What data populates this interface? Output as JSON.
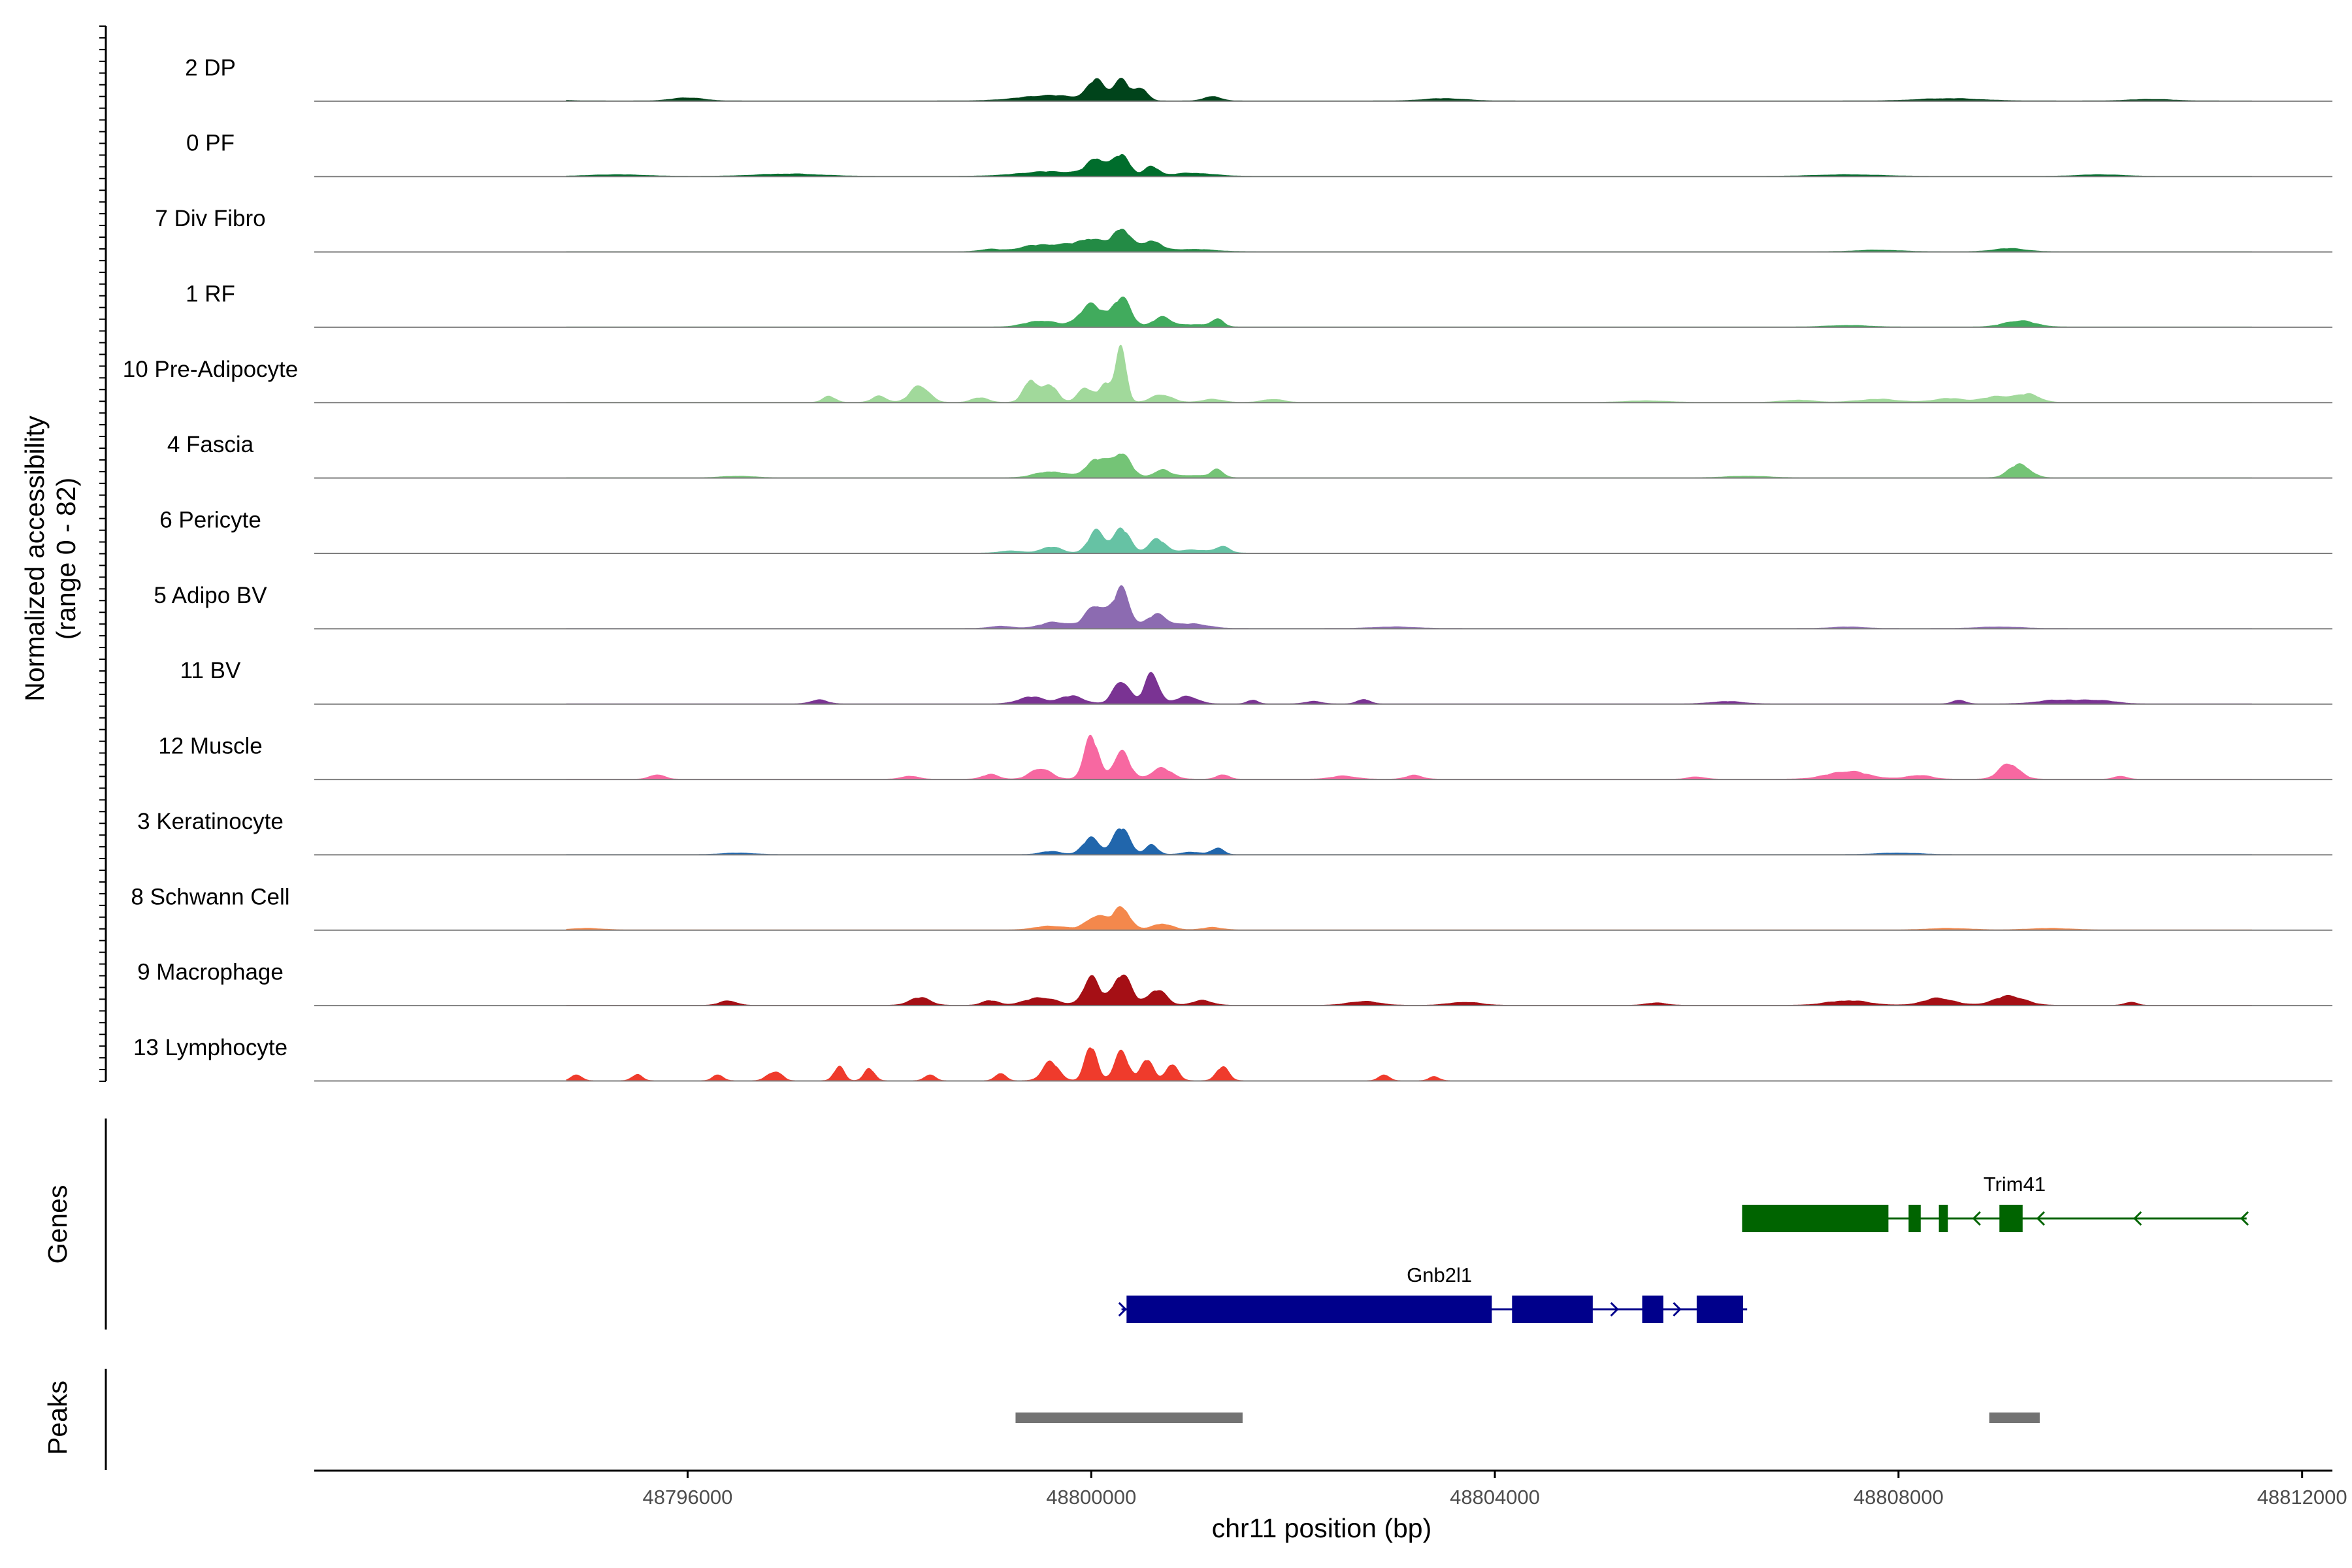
{
  "chart_data": {
    "type": "area",
    "chromosome": "chr11",
    "xlabel": "chr11 position (bp)",
    "xlim": [
      48792300,
      48812300
    ],
    "xticks": [
      48796000,
      48800000,
      48804000,
      48808000,
      48812000
    ],
    "coverage": {
      "ylabel_line1": "Normalized accessibility",
      "ylabel_line2": "(range 0 - 82)",
      "ylim": [
        0,
        82
      ],
      "tracks": [
        {
          "name": "2 DP",
          "color": "#00441B",
          "peaks": [
            [
              48800050,
              80,
              26
            ],
            [
              48800300,
              80,
              26
            ],
            [
              48800500,
              60,
              16
            ],
            [
              48799600,
              300,
              7
            ],
            [
              48801200,
              80,
              6
            ],
            [
              48796000,
              150,
              4
            ],
            [
              48803500,
              200,
              3
            ],
            [
              48808500,
              300,
              3
            ],
            [
              48810500,
              200,
              2
            ],
            [
              48794500,
              200,
              2
            ]
          ]
        },
        {
          "name": "0 PF",
          "color": "#006D2C",
          "peaks": [
            [
              48800050,
              90,
              22
            ],
            [
              48800300,
              80,
              28
            ],
            [
              48800600,
              70,
              12
            ],
            [
              48799600,
              300,
              6
            ],
            [
              48801000,
              200,
              4
            ],
            [
              48797000,
              300,
              3
            ],
            [
              48795300,
              250,
              2
            ],
            [
              48807500,
              300,
              2
            ],
            [
              48810000,
              200,
              2
            ]
          ]
        },
        {
          "name": "7 Div Fibro",
          "color": "#238B45",
          "peaks": [
            [
              48799700,
              200,
              8
            ],
            [
              48800000,
              120,
              14
            ],
            [
              48800300,
              90,
              30
            ],
            [
              48800600,
              90,
              14
            ],
            [
              48799400,
              150,
              5
            ],
            [
              48793300,
              50,
              4
            ],
            [
              48799000,
              100,
              3
            ],
            [
              48809100,
              150,
              4
            ],
            [
              48801000,
              200,
              3
            ],
            [
              48807800,
              200,
              2
            ]
          ]
        },
        {
          "name": "1 RF",
          "color": "#41AB5D",
          "peaks": [
            [
              48799500,
              150,
              8
            ],
            [
              48800000,
              120,
              28
            ],
            [
              48800300,
              90,
              36
            ],
            [
              48800700,
              90,
              12
            ],
            [
              48801250,
              60,
              10
            ],
            [
              48809200,
              150,
              8
            ],
            [
              48801000,
              150,
              3
            ],
            [
              48807500,
              200,
              2
            ]
          ]
        },
        {
          "name": "10 Pre-Adipocyte",
          "color": "#A1D99B",
          "peaks": [
            [
              48800300,
              50,
              70
            ],
            [
              48800150,
              60,
              25
            ],
            [
              48799950,
              80,
              18
            ],
            [
              48799600,
              70,
              22
            ],
            [
              48799400,
              70,
              30
            ],
            [
              48798300,
              90,
              22
            ],
            [
              48797900,
              70,
              8
            ],
            [
              48797400,
              60,
              8
            ],
            [
              48798900,
              80,
              6
            ],
            [
              48800700,
              100,
              10
            ],
            [
              48801200,
              100,
              4
            ],
            [
              48801800,
              100,
              4
            ],
            [
              48809000,
              150,
              8
            ],
            [
              48809300,
              100,
              10
            ],
            [
              48808500,
              150,
              5
            ],
            [
              48807800,
              200,
              4
            ],
            [
              48807000,
              150,
              3
            ],
            [
              48793500,
              150,
              2
            ],
            [
              48805500,
              200,
              2
            ]
          ]
        },
        {
          "name": "4 Fascia",
          "color": "#74C476",
          "peaks": [
            [
              48799600,
              150,
              8
            ],
            [
              48800050,
              100,
              24
            ],
            [
              48800300,
              90,
              32
            ],
            [
              48800700,
              80,
              10
            ],
            [
              48801250,
              60,
              10
            ],
            [
              48809200,
              100,
              18
            ],
            [
              48801000,
              150,
              3
            ],
            [
              48806500,
              200,
              2
            ],
            [
              48796500,
              150,
              2
            ]
          ]
        },
        {
          "name": "6 Pericyte",
          "color": "#66C2A4",
          "peaks": [
            [
              48799600,
              100,
              8
            ],
            [
              48800050,
              80,
              28
            ],
            [
              48800300,
              80,
              32
            ],
            [
              48800650,
              80,
              18
            ],
            [
              48801300,
              70,
              8
            ],
            [
              48801000,
              150,
              4
            ],
            [
              48799200,
              100,
              3
            ]
          ]
        },
        {
          "name": "5 Adipo BV",
          "color": "#8C6BB1",
          "peaks": [
            [
              48800050,
              100,
              30
            ],
            [
              48800300,
              80,
              50
            ],
            [
              48800650,
              100,
              18
            ],
            [
              48799650,
              150,
              8
            ],
            [
              48801000,
              150,
              6
            ],
            [
              48799100,
              100,
              3
            ],
            [
              48803000,
              200,
              2
            ],
            [
              48807500,
              150,
              2
            ],
            [
              48809000,
              200,
              2
            ]
          ]
        },
        {
          "name": "11 BV",
          "color": "#7A3393",
          "peaks": [
            [
              48799400,
              120,
              9
            ],
            [
              48799800,
              120,
              10
            ],
            [
              48800300,
              80,
              30
            ],
            [
              48800600,
              70,
              40
            ],
            [
              48800950,
              100,
              10
            ],
            [
              48801600,
              50,
              5
            ],
            [
              48802700,
              60,
              6
            ],
            [
              48797300,
              80,
              5
            ],
            [
              48809600,
              200,
              5
            ],
            [
              48808600,
              60,
              5
            ],
            [
              48810000,
              150,
              4
            ],
            [
              48806300,
              150,
              3
            ],
            [
              48793900,
              80,
              4
            ],
            [
              48802200,
              80,
              3
            ]
          ]
        },
        {
          "name": "12 Muscle",
          "color": "#F768A1",
          "peaks": [
            [
              48800000,
              70,
              55
            ],
            [
              48800300,
              80,
              35
            ],
            [
              48799500,
              100,
              14
            ],
            [
              48800700,
              100,
              14
            ],
            [
              48799000,
              80,
              6
            ],
            [
              48801300,
              60,
              6
            ],
            [
              48809100,
              100,
              20
            ],
            [
              48807500,
              200,
              10
            ],
            [
              48808200,
              120,
              5
            ],
            [
              48793700,
              80,
              8
            ],
            [
              48795700,
              70,
              6
            ],
            [
              48798200,
              80,
              4
            ],
            [
              48802500,
              120,
              4
            ],
            [
              48803200,
              80,
              5
            ],
            [
              48810200,
              60,
              4
            ],
            [
              48806000,
              80,
              3
            ]
          ]
        },
        {
          "name": "3 Keratinocyte",
          "color": "#2166AC",
          "peaks": [
            [
              48800000,
              80,
              22
            ],
            [
              48800300,
              80,
              35
            ],
            [
              48800600,
              60,
              12
            ],
            [
              48801250,
              60,
              8
            ],
            [
              48799600,
              100,
              4
            ],
            [
              48801000,
              100,
              3
            ],
            [
              48796500,
              150,
              2
            ],
            [
              48808000,
              200,
              2
            ]
          ]
        },
        {
          "name": "8 Schwann Cell",
          "color": "#F4884C",
          "peaks": [
            [
              48800050,
              100,
              18
            ],
            [
              48800300,
              80,
              30
            ],
            [
              48800700,
              100,
              8
            ],
            [
              48799600,
              150,
              5
            ],
            [
              48801200,
              100,
              3
            ],
            [
              48795000,
              150,
              2
            ],
            [
              48808500,
              200,
              2
            ],
            [
              48809500,
              200,
              2
            ]
          ]
        },
        {
          "name": "9 Macrophage",
          "color": "#A50F15",
          "peaks": [
            [
              48800000,
              80,
              35
            ],
            [
              48800300,
              90,
              40
            ],
            [
              48800650,
              90,
              20
            ],
            [
              48799500,
              150,
              10
            ],
            [
              48801100,
              100,
              6
            ],
            [
              48799000,
              80,
              6
            ],
            [
              48798300,
              100,
              10
            ],
            [
              48796400,
              80,
              6
            ],
            [
              48809100,
              150,
              12
            ],
            [
              48808400,
              150,
              9
            ],
            [
              48807500,
              200,
              6
            ],
            [
              48802700,
              150,
              5
            ],
            [
              48803700,
              150,
              4
            ],
            [
              48793800,
              60,
              5
            ],
            [
              48810300,
              60,
              4
            ],
            [
              48805600,
              100,
              3
            ]
          ]
        },
        {
          "name": "13 Lymphocyte",
          "color": "#EF3B2C",
          "peaks": [
            [
              48800000,
              60,
              45
            ],
            [
              48800300,
              70,
              36
            ],
            [
              48800550,
              60,
              28
            ],
            [
              48799600,
              80,
              24
            ],
            [
              48800800,
              60,
              22
            ],
            [
              48799100,
              50,
              10
            ],
            [
              48801300,
              60,
              18
            ],
            [
              48797500,
              50,
              18
            ],
            [
              48797800,
              50,
              16
            ],
            [
              48796900,
              50,
              10
            ],
            [
              48796300,
              50,
              8
            ],
            [
              48796800,
              50,
              6
            ],
            [
              48795500,
              50,
              8
            ],
            [
              48794900,
              50,
              8
            ],
            [
              48794300,
              50,
              6
            ],
            [
              48798400,
              50,
              8
            ],
            [
              48802900,
              50,
              8
            ],
            [
              48803400,
              50,
              5
            ]
          ]
        }
      ]
    },
    "genes": {
      "label": "Genes",
      "items": [
        {
          "name": "Trim41",
          "color": "#006400",
          "strand": "-",
          "start": 48806450,
          "end": 48811450,
          "exons": [
            [
              48806450,
              48807900
            ],
            [
              48808100,
              48808220
            ],
            [
              48808400,
              48808490
            ],
            [
              48809000,
              48809230
            ]
          ]
        },
        {
          "name": "Gnb2l1",
          "color": "#00008B",
          "strand": "+",
          "start": 48800300,
          "end": 48806500,
          "exons": [
            [
              48800350,
              48803970
            ],
            [
              48804170,
              48804970
            ],
            [
              48805460,
              48805670
            ],
            [
              48806000,
              48806460
            ]
          ]
        }
      ]
    },
    "peaks": {
      "label": "Peaks",
      "color": "#737373",
      "regions": [
        [
          48799250,
          48801500
        ],
        [
          48808900,
          48809400
        ]
      ]
    }
  }
}
